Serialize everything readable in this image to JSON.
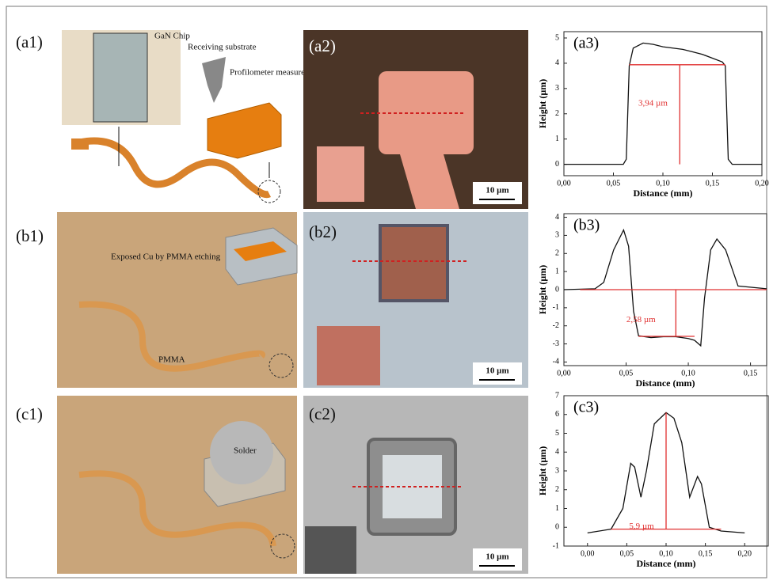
{
  "figure": {
    "labels": {
      "a1": "(a1)",
      "a2": "(a2)",
      "b1": "(b1)",
      "b2": "(b2)",
      "c1": "(c1)",
      "c2": "(c2)"
    },
    "a1_texts": {
      "chip": "GaN Chip",
      "substrate": "Receiving substrate",
      "profilometer": "Profilometer measurement"
    },
    "b1_texts": {
      "exposed": "Exposed Cu by PMMA etching",
      "pmma": "PMMA"
    },
    "c1_texts": {
      "solder": "Solder"
    },
    "scale_bars": [
      "10 µm",
      "10 µm",
      "10 µm"
    ]
  },
  "chart_data": [
    {
      "type": "line",
      "label": "(a3)",
      "annotation": "3,94 µm",
      "x_label": "Distance (mm)",
      "y_label": "Height (µm)",
      "xlim": [
        0,
        0.2
      ],
      "ylim": [
        -0.45,
        5.25
      ],
      "xticks": [
        {
          "value": 0,
          "label": "0,00"
        },
        {
          "value": 0.05,
          "label": "0,05"
        },
        {
          "value": 0.1,
          "label": "0,10"
        },
        {
          "value": 0.15,
          "label": "0,15"
        },
        {
          "value": 0.2,
          "label": "0,20"
        }
      ],
      "yticks": [
        0,
        1,
        2,
        3,
        4,
        5
      ],
      "series": [
        {
          "color": "#111111",
          "x": [
            0,
            0.06,
            0.063,
            0.066,
            0.07,
            0.08,
            0.09,
            0.1,
            0.11,
            0.12,
            0.13,
            0.14,
            0.15,
            0.16,
            0.163,
            0.166,
            0.17,
            0.2
          ],
          "values": [
            0,
            0,
            0.2,
            3.9,
            4.6,
            4.8,
            4.75,
            4.65,
            4.6,
            4.55,
            4.45,
            4.35,
            4.2,
            4.05,
            3.9,
            0.2,
            0,
            0
          ]
        },
        {
          "color": "#e03030",
          "x": [
            0.066,
            0.163,
            null,
            0.117,
            0.117
          ],
          "values": [
            3.94,
            3.94,
            null,
            3.94,
            0
          ]
        }
      ]
    },
    {
      "type": "line",
      "label": "(b3)",
      "annotation": "2,58 µm",
      "x_label": "Distance (mm)",
      "y_label": "Height (µm)",
      "xlim": [
        0,
        0.163
      ],
      "ylim": [
        -4.2,
        4.2
      ],
      "xticks": [
        {
          "value": 0,
          "label": "0,00"
        },
        {
          "value": 0.05,
          "label": "0,05"
        },
        {
          "value": 0.1,
          "label": "0,10"
        },
        {
          "value": 0.15,
          "label": "0,15"
        }
      ],
      "yticks": [
        -4,
        -3,
        -2,
        -1,
        0,
        1,
        2,
        3,
        4
      ],
      "series": [
        {
          "color": "#111111",
          "x": [
            0,
            0.025,
            0.032,
            0.04,
            0.048,
            0.052,
            0.056,
            0.06,
            0.07,
            0.08,
            0.09,
            0.1,
            0.105,
            0.11,
            0.113,
            0.118,
            0.123,
            0.13,
            0.14,
            0.163
          ],
          "values": [
            0,
            0.05,
            0.4,
            2.2,
            3.3,
            2.4,
            -1.2,
            -2.55,
            -2.65,
            -2.6,
            -2.6,
            -2.7,
            -2.8,
            -3.1,
            -0.5,
            2.2,
            2.8,
            2.2,
            0.2,
            0.05
          ]
        },
        {
          "color": "#e03030",
          "x": [
            0.013,
            0.163,
            null,
            0.06,
            0.105,
            null,
            0.09,
            0.09
          ],
          "values": [
            0,
            0,
            null,
            -2.58,
            -2.58,
            null,
            0,
            -2.58
          ]
        }
      ]
    },
    {
      "type": "line",
      "label": "(c3)",
      "annotation": "5,9 µm",
      "x_label": "Distance (mm)",
      "y_label": "Height (µm)",
      "xlim": [
        -0.03,
        0.23
      ],
      "ylim": [
        -1,
        7
      ],
      "xticks": [
        {
          "value": 0,
          "label": "0,00"
        },
        {
          "value": 0.05,
          "label": "0,05"
        },
        {
          "value": 0.1,
          "label": "0,10"
        },
        {
          "value": 0.15,
          "label": "0,15"
        },
        {
          "value": 0.2,
          "label": "0,20"
        }
      ],
      "yticks": [
        -1,
        0,
        1,
        2,
        3,
        4,
        5,
        6,
        7
      ],
      "series": [
        {
          "color": "#111111",
          "x": [
            0,
            0.03,
            0.045,
            0.055,
            0.06,
            0.068,
            0.075,
            0.085,
            0.1,
            0.11,
            0.12,
            0.13,
            0.14,
            0.145,
            0.155,
            0.17,
            0.2
          ],
          "values": [
            -0.3,
            -0.1,
            1,
            3.4,
            3.2,
            1.6,
            3,
            5.5,
            6.1,
            5.8,
            4.5,
            1.6,
            2.7,
            2.3,
            0,
            -0.2,
            -0.3
          ]
        },
        {
          "color": "#e03030",
          "x": [
            0.03,
            0.17,
            null,
            0.1,
            0.1
          ],
          "values": [
            -0.1,
            -0.1,
            null,
            -0.1,
            6.1
          ]
        }
      ]
    }
  ]
}
